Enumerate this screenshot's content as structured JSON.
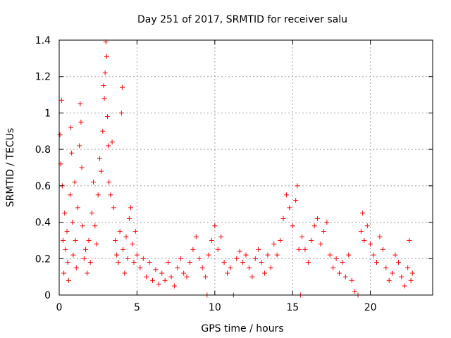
{
  "chart_data": {
    "type": "scatter",
    "title": "Day 251 of 2017, SRMTID for receiver salu",
    "xlabel": "GPS time / hours",
    "ylabel": "SRMTID / TECUs",
    "xlim": [
      0,
      24
    ],
    "ylim": [
      0,
      1.4
    ],
    "xticks": [
      0,
      5,
      10,
      15,
      20
    ],
    "yticks": [
      0,
      0.2,
      0.4,
      0.6,
      0.8,
      1,
      1.2,
      1.4
    ],
    "ytick_labels": [
      "0",
      "0.2",
      "0.4",
      "0.6",
      "0.8",
      "1",
      "1.2",
      "1.4"
    ],
    "grid": true,
    "marker": "plus",
    "series": [
      {
        "name": "SRMTID",
        "color": "#ff0000",
        "points": [
          [
            0.05,
            0.88
          ],
          [
            0.1,
            0.72
          ],
          [
            0.15,
            1.07
          ],
          [
            0.2,
            0.6
          ],
          [
            0.25,
            0.3
          ],
          [
            0.3,
            0.12
          ],
          [
            0.35,
            0.45
          ],
          [
            0.4,
            0.25
          ],
          [
            0.5,
            0.35
          ],
          [
            0.55,
            0.18
          ],
          [
            0.6,
            0.08
          ],
          [
            0.7,
            0.55
          ],
          [
            0.75,
            0.92
          ],
          [
            0.8,
            0.78
          ],
          [
            0.85,
            0.4
          ],
          [
            0.9,
            0.22
          ],
          [
            1.0,
            0.62
          ],
          [
            1.05,
            0.3
          ],
          [
            1.1,
            0.15
          ],
          [
            1.2,
            0.48
          ],
          [
            1.3,
            0.82
          ],
          [
            1.35,
            1.05
          ],
          [
            1.4,
            0.95
          ],
          [
            1.45,
            0.7
          ],
          [
            1.5,
            0.38
          ],
          [
            1.6,
            0.2
          ],
          [
            1.7,
            0.25
          ],
          [
            1.8,
            0.12
          ],
          [
            1.9,
            0.3
          ],
          [
            2.0,
            0.18
          ],
          [
            2.1,
            0.45
          ],
          [
            2.2,
            0.62
          ],
          [
            2.3,
            0.38
          ],
          [
            2.4,
            0.28
          ],
          [
            2.5,
            0.55
          ],
          [
            2.6,
            0.75
          ],
          [
            2.7,
            0.68
          ],
          [
            2.8,
            0.9
          ],
          [
            2.85,
            1.15
          ],
          [
            2.9,
            1.08
          ],
          [
            2.95,
            1.22
          ],
          [
            3.0,
            1.39
          ],
          [
            3.05,
            1.31
          ],
          [
            3.1,
            0.98
          ],
          [
            3.15,
            0.82
          ],
          [
            3.2,
            0.62
          ],
          [
            3.3,
            0.55
          ],
          [
            3.4,
            0.84
          ],
          [
            3.5,
            0.48
          ],
          [
            3.6,
            0.3
          ],
          [
            3.7,
            0.22
          ],
          [
            3.8,
            0.18
          ],
          [
            3.9,
            0.35
          ],
          [
            4.0,
            1.0
          ],
          [
            4.05,
            1.14
          ],
          [
            4.1,
            0.25
          ],
          [
            4.2,
            0.12
          ],
          [
            4.3,
            0.32
          ],
          [
            4.4,
            0.2
          ],
          [
            4.5,
            0.42
          ],
          [
            4.6,
            0.48
          ],
          [
            4.7,
            0.28
          ],
          [
            4.8,
            0.18
          ],
          [
            4.9,
            0.35
          ],
          [
            5.0,
            0.22
          ],
          [
            5.2,
            0.15
          ],
          [
            5.4,
            0.2
          ],
          [
            5.6,
            0.1
          ],
          [
            5.8,
            0.18
          ],
          [
            6.0,
            0.08
          ],
          [
            6.2,
            0.14
          ],
          [
            6.4,
            0.06
          ],
          [
            6.6,
            0.12
          ],
          [
            6.8,
            0.08
          ],
          [
            7.0,
            0.18
          ],
          [
            7.2,
            0.1
          ],
          [
            7.4,
            0.05
          ],
          [
            7.6,
            0.15
          ],
          [
            7.8,
            0.2
          ],
          [
            8.0,
            0.12
          ],
          [
            8.2,
            0.1
          ],
          [
            8.4,
            0.18
          ],
          [
            8.6,
            0.25
          ],
          [
            8.8,
            0.32
          ],
          [
            9.0,
            0.2
          ],
          [
            9.2,
            0.15
          ],
          [
            9.4,
            0.1
          ],
          [
            9.5,
            0.0
          ],
          [
            9.6,
            0.22
          ],
          [
            9.8,
            0.3
          ],
          [
            10.0,
            0.38
          ],
          [
            10.2,
            0.25
          ],
          [
            10.4,
            0.32
          ],
          [
            10.6,
            0.18
          ],
          [
            10.8,
            0.12
          ],
          [
            11.0,
            0.15
          ],
          [
            11.2,
            0.0
          ],
          [
            11.4,
            0.2
          ],
          [
            11.6,
            0.24
          ],
          [
            11.8,
            0.18
          ],
          [
            12.0,
            0.22
          ],
          [
            12.2,
            0.15
          ],
          [
            12.4,
            0.1
          ],
          [
            12.6,
            0.2
          ],
          [
            12.8,
            0.25
          ],
          [
            13.0,
            0.18
          ],
          [
            13.2,
            0.12
          ],
          [
            13.4,
            0.22
          ],
          [
            13.6,
            0.15
          ],
          [
            13.8,
            0.28
          ],
          [
            14.0,
            0.22
          ],
          [
            14.2,
            0.3
          ],
          [
            14.4,
            0.42
          ],
          [
            14.6,
            0.55
          ],
          [
            14.8,
            0.48
          ],
          [
            15.0,
            0.38
          ],
          [
            15.2,
            0.52
          ],
          [
            15.3,
            0.6
          ],
          [
            15.4,
            0.25
          ],
          [
            15.5,
            0.0
          ],
          [
            15.6,
            0.32
          ],
          [
            15.8,
            0.25
          ],
          [
            16.0,
            0.18
          ],
          [
            16.2,
            0.3
          ],
          [
            16.4,
            0.38
          ],
          [
            16.6,
            0.42
          ],
          [
            16.8,
            0.28
          ],
          [
            17.0,
            0.35
          ],
          [
            17.2,
            0.4
          ],
          [
            17.4,
            0.22
          ],
          [
            17.6,
            0.15
          ],
          [
            17.8,
            0.2
          ],
          [
            18.0,
            0.12
          ],
          [
            18.2,
            0.18
          ],
          [
            18.4,
            0.1
          ],
          [
            18.6,
            0.22
          ],
          [
            18.8,
            0.08
          ],
          [
            19.0,
            0.02
          ],
          [
            19.2,
            0.0
          ],
          [
            19.4,
            0.35
          ],
          [
            19.5,
            0.45
          ],
          [
            19.6,
            0.3
          ],
          [
            19.8,
            0.38
          ],
          [
            20.0,
            0.28
          ],
          [
            20.2,
            0.22
          ],
          [
            20.4,
            0.18
          ],
          [
            20.6,
            0.32
          ],
          [
            20.8,
            0.25
          ],
          [
            21.0,
            0.15
          ],
          [
            21.2,
            0.08
          ],
          [
            21.4,
            0.12
          ],
          [
            21.6,
            0.22
          ],
          [
            21.8,
            0.18
          ],
          [
            22.0,
            0.1
          ],
          [
            22.2,
            0.05
          ],
          [
            22.4,
            0.15
          ],
          [
            22.5,
            0.3
          ],
          [
            22.6,
            0.08
          ],
          [
            22.7,
            0.12
          ]
        ]
      }
    ]
  }
}
